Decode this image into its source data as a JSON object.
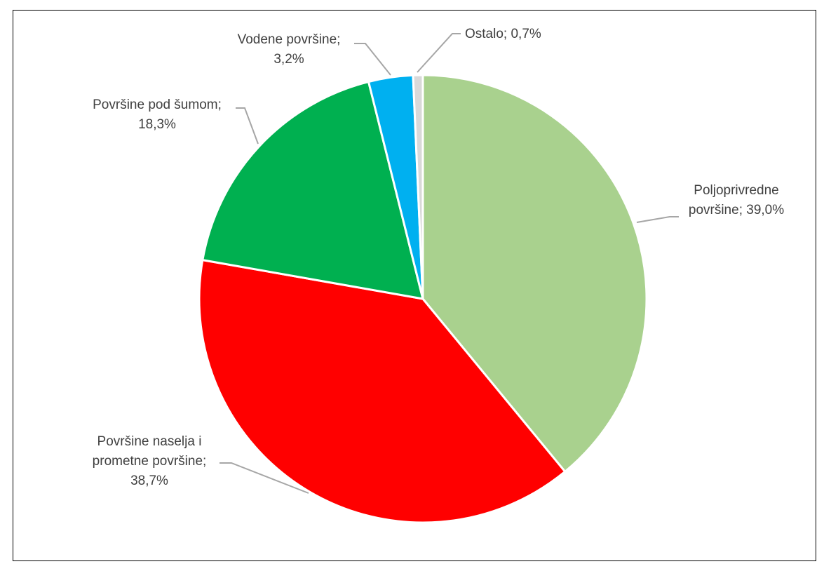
{
  "chart_data": {
    "type": "pie",
    "title": "",
    "slices": [
      {
        "name": "Poljoprivredne površine",
        "value": 39.0,
        "color": "#a9d18e",
        "label_lines": [
          "Poljoprivredne",
          "površine; 39,0%"
        ]
      },
      {
        "name": "Površine naselja i prometne površine",
        "value": 38.7,
        "color": "#ff0000",
        "label_lines": [
          "Površine naselja i",
          "prometne površine;",
          "38,7%"
        ]
      },
      {
        "name": "Površine pod šumom",
        "value": 18.3,
        "color": "#00b050",
        "label_lines": [
          "Površine pod šumom;",
          "18,3%"
        ]
      },
      {
        "name": "Vodene površine",
        "value": 3.2,
        "color": "#00b0f0",
        "label_lines": [
          "Vodene površine;",
          "3,2%"
        ]
      },
      {
        "name": "Ostalo",
        "value": 0.7,
        "color": "#d9d9d9",
        "label_lines": [
          "Ostalo; 0,7%"
        ]
      }
    ],
    "start": "top",
    "direction": "clockwise",
    "legend": "none",
    "leader_line_color": "#a6a6a6"
  }
}
